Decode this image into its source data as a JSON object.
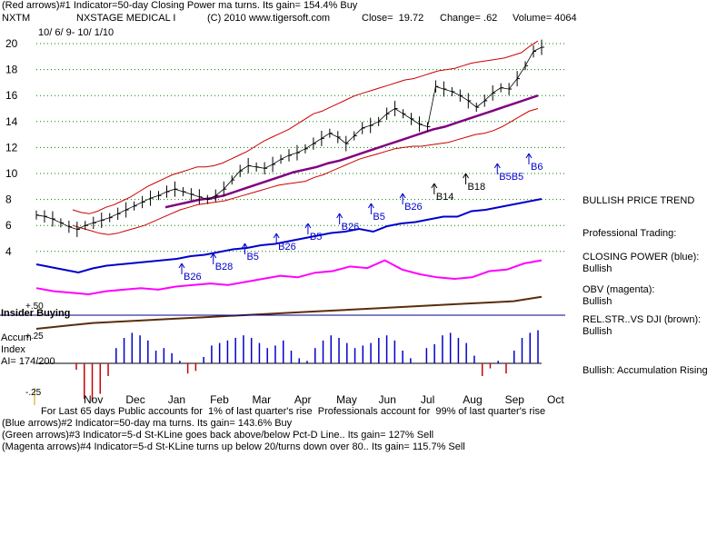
{
  "header": {
    "line1": "(Red arrows)#1 Indicator=50-day Closing Power ma turns. Its gain= 154.4% Buy",
    "ticker": "NXTM",
    "company": "NXSTAGE MEDICAL I",
    "copyright": "(C) 2010 www.tigersoft.com",
    "close": "Close=  19.72",
    "change": "Change= .62",
    "volume": "Volume= 4064",
    "daterange": "10/ 6/ 9- 10/ 1/10"
  },
  "footer": {
    "line1": "For Last 65 days Public accounts for  1% of last quarter's rise  Professionals account for  99% of last quarter's rise",
    "line2": "(Blue arrows)#2 Indicator=50-day ma turns. Its gain= 143.6% Buy",
    "line3": "(Green arrows)#3 Indicator=5-d St-KLine goes back above/below Pct-D Line.. Its gain= 127% Sell",
    "line4": "(Magenta arrows)#4 Indicator=5-d St-KLine turns up below 20/turns down over 80.. Its gain= 115.7% Sell"
  },
  "sidebar": {
    "trend": "BULLISH PRICE TREND",
    "pro": "Professional Trading:",
    "cp_label": "CLOSING POWER (blue):",
    "cp_val": "Bullish",
    "obv_label": "OBV (magenta):",
    "obv_val": "Bullish",
    "rs_label": "REL.STR..VS DJI (brown):",
    "rs_val": "Bullish",
    "accum": "Bullish: Accumulation Rising"
  },
  "panels": {
    "insider": "Insider Buying",
    "accum1": "Accum",
    "accum2": "Index",
    "ai": "AI= 174/200",
    "plus50": "+.50",
    "plus25": "+.25",
    "minus25": "-.25"
  },
  "colors": {
    "price": "#000000",
    "band": "#cc0000",
    "ma": "#800080",
    "closing_power": "#0000cc",
    "obv": "#ff00ff",
    "relstr": "#5a2d0c",
    "accum_pos": "#0000cc",
    "accum_neg": "#cc0000",
    "grid": "#008000"
  },
  "chart_data": {
    "type": "line",
    "title": "NXTM NXSTAGE MEDICAL I",
    "ylim": [
      3,
      21
    ],
    "y_ticks": [
      20,
      18,
      16,
      14,
      12,
      10,
      8,
      6,
      4
    ],
    "x_ticks": [
      "Nov",
      "Dec",
      "Jan",
      "Feb",
      "Mar",
      "Apr",
      "May",
      "Jun",
      "Jul",
      "Aug",
      "Sep",
      "Oct"
    ],
    "price": [
      6.8,
      6.7,
      6.5,
      6.2,
      5.9,
      5.7,
      6.0,
      6.2,
      6.4,
      6.6,
      6.9,
      7.2,
      7.5,
      7.8,
      8.1,
      8.3,
      8.6,
      8.8,
      8.6,
      8.4,
      8.2,
      8.0,
      8.3,
      8.8,
      9.5,
      10.2,
      10.6,
      10.5,
      10.4,
      10.7,
      11.1,
      11.4,
      11.6,
      11.9,
      12.3,
      12.7,
      13.1,
      12.8,
      12.3,
      12.9,
      13.5,
      13.7,
      14.0,
      14.6,
      15.0,
      14.6,
      14.2,
      13.8,
      13.6,
      16.7,
      16.5,
      16.3,
      16.0,
      15.6,
      15.1,
      15.6,
      16.2,
      16.6,
      16.5,
      17.3,
      18.3,
      19.4,
      19.72
    ],
    "upper_band": [
      7.2,
      7.0,
      6.9,
      7.1,
      7.4,
      7.6,
      7.9,
      8.2,
      8.6,
      9.0,
      9.3,
      9.6,
      9.9,
      10.1,
      10.3,
      10.5,
      10.5,
      10.6,
      10.8,
      11.1,
      11.4,
      11.7,
      12.1,
      12.5,
      12.8,
      13.1,
      13.4,
      13.8,
      14.2,
      14.6,
      14.8,
      15.1,
      15.4,
      15.7,
      16.0,
      16.2,
      16.4,
      16.6,
      16.8,
      17.0,
      17.2,
      17.3,
      17.5,
      17.7,
      17.9,
      18.0,
      18.1,
      18.3,
      18.5,
      18.6,
      18.7,
      18.8,
      18.9,
      19.1,
      19.3,
      19.8,
      20.2
    ],
    "lower_band": [
      6.0,
      5.8,
      5.6,
      5.4,
      5.3,
      5.4,
      5.6,
      5.8,
      6.0,
      6.3,
      6.6,
      6.9,
      7.2,
      7.4,
      7.6,
      7.7,
      7.8,
      7.9,
      8.1,
      8.3,
      8.5,
      8.7,
      8.9,
      9.1,
      9.2,
      9.3,
      9.4,
      9.7,
      9.9,
      10.2,
      10.5,
      10.8,
      11.1,
      11.3,
      11.5,
      11.7,
      11.9,
      12.0,
      12.1,
      12.1,
      12.2,
      12.3,
      12.4,
      12.6,
      12.8,
      13.0,
      13.1,
      13.3,
      13.6,
      14.0,
      14.4,
      14.8,
      15.0
    ],
    "ma50": [
      7.4,
      7.6,
      7.8,
      8.0,
      8.1,
      8.3,
      8.6,
      8.9,
      9.2,
      9.5,
      9.8,
      10.1,
      10.3,
      10.5,
      10.8,
      11.0,
      11.3,
      11.6,
      11.9,
      12.2,
      12.5,
      12.8,
      13.1,
      13.4,
      13.6,
      13.9,
      14.2,
      14.5,
      14.8,
      15.1,
      15.4,
      15.7,
      16.0
    ],
    "closing_power": [
      3.9,
      3.7,
      3.5,
      3.3,
      3.6,
      3.8,
      3.9,
      4.0,
      4.1,
      4.2,
      4.3,
      4.5,
      4.6,
      4.8,
      5.0,
      5.1,
      5.3,
      5.4,
      5.6,
      5.8,
      6.0,
      6.2,
      6.3,
      6.5,
      6.3,
      6.7,
      6.9,
      7.0,
      7.2,
      7.4,
      7.4,
      7.8,
      7.9,
      8.1,
      8.3,
      8.5,
      8.7
    ],
    "obv": [
      2.3,
      2.1,
      2.0,
      1.9,
      2.1,
      2.2,
      2.3,
      2.2,
      2.4,
      2.5,
      2.6,
      2.5,
      2.7,
      2.9,
      3.1,
      3.0,
      3.3,
      3.4,
      3.7,
      3.6,
      4.1,
      3.5,
      3.2,
      3.0,
      2.9,
      3.0,
      3.4,
      3.5,
      3.9,
      4.1
    ],
    "relstr": [
      1.4,
      1.6,
      1.8,
      1.9,
      2.0,
      2.1,
      2.2,
      2.3,
      2.4,
      2.5,
      2.6,
      2.7,
      2.8,
      2.9,
      3.0,
      3.1,
      3.2,
      3.3,
      3.6
    ],
    "accum_index": [
      -0.05,
      -0.28,
      -0.3,
      -0.24,
      -0.1,
      0.12,
      0.2,
      0.24,
      0.22,
      0.18,
      0.1,
      0.12,
      0.08,
      0.02,
      -0.08,
      -0.06,
      0.05,
      0.14,
      0.16,
      0.18,
      0.2,
      0.22,
      0.2,
      0.16,
      0.12,
      0.14,
      0.18,
      0.1,
      0.04,
      0.02,
      0.12,
      0.18,
      0.22,
      0.2,
      0.16,
      0.12,
      0.14,
      0.16,
      0.2,
      0.22,
      0.18,
      0.1,
      0.04,
      0.0,
      0.12,
      0.15,
      0.22,
      0.24,
      0.2,
      0.16,
      0.06,
      -0.1,
      -0.04,
      0.02,
      -0.08,
      0.1,
      0.2,
      0.24,
      0.26
    ],
    "annotations": [
      {
        "label": "B26",
        "color": "#0000cc"
      },
      {
        "label": "B28",
        "color": "#0000cc"
      },
      {
        "label": "B5",
        "color": "#0000cc"
      },
      {
        "label": "B26",
        "color": "#0000cc"
      },
      {
        "label": "B5",
        "color": "#0000cc"
      },
      {
        "label": "B26",
        "color": "#0000cc"
      },
      {
        "label": "B5",
        "color": "#0000cc"
      },
      {
        "label": "B26",
        "color": "#0000cc"
      },
      {
        "label": "B14",
        "color": "#000000"
      },
      {
        "label": "B18",
        "color": "#000000"
      },
      {
        "label": "B5B5",
        "color": "#0000cc"
      },
      {
        "label": "B6",
        "color": "#0000cc"
      }
    ]
  }
}
